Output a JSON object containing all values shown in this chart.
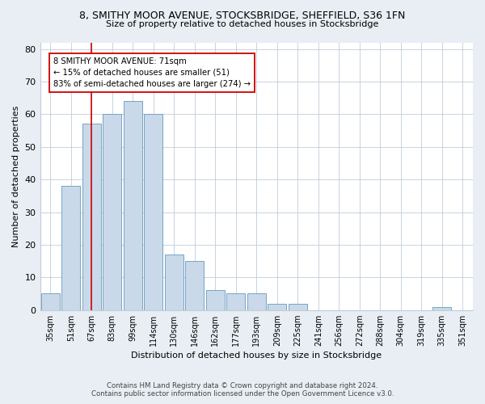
{
  "title1": "8, SMITHY MOOR AVENUE, STOCKSBRIDGE, SHEFFIELD, S36 1FN",
  "title2": "Size of property relative to detached houses in Stocksbridge",
  "xlabel": "Distribution of detached houses by size in Stocksbridge",
  "ylabel": "Number of detached properties",
  "categories": [
    "35sqm",
    "51sqm",
    "67sqm",
    "83sqm",
    "99sqm",
    "114sqm",
    "130sqm",
    "146sqm",
    "162sqm",
    "177sqm",
    "193sqm",
    "209sqm",
    "225sqm",
    "241sqm",
    "256sqm",
    "272sqm",
    "288sqm",
    "304sqm",
    "319sqm",
    "335sqm",
    "351sqm"
  ],
  "values": [
    5,
    38,
    57,
    60,
    64,
    60,
    17,
    15,
    6,
    5,
    5,
    2,
    2,
    0,
    0,
    0,
    0,
    0,
    0,
    1,
    0
  ],
  "bar_color": "#c9d9ea",
  "bar_edge_color": "#6699bb",
  "vline_color": "#cc0000",
  "annotation_text": "8 SMITHY MOOR AVENUE: 71sqm\n← 15% of detached houses are smaller (51)\n83% of semi-detached houses are larger (274) →",
  "annotation_box_color": "#ffffff",
  "annotation_box_edge_color": "#cc0000",
  "ylim": [
    0,
    82
  ],
  "yticks": [
    0,
    10,
    20,
    30,
    40,
    50,
    60,
    70,
    80
  ],
  "footer1": "Contains HM Land Registry data © Crown copyright and database right 2024.",
  "footer2": "Contains public sector information licensed under the Open Government Licence v3.0.",
  "bg_color": "#e8eef4",
  "plot_bg_color": "#ffffff",
  "grid_color": "#c0ccd8"
}
